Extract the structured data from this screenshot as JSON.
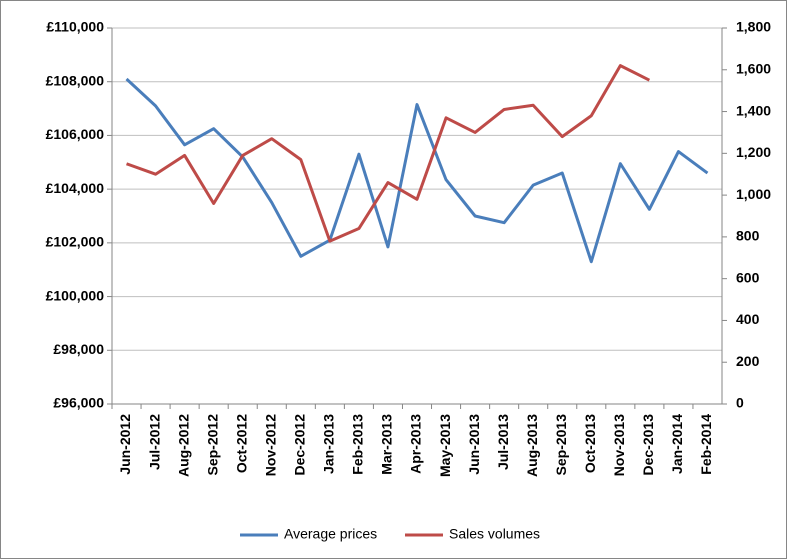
{
  "chart_data": {
    "type": "line",
    "categories": [
      "Jun-2012",
      "Jul-2012",
      "Aug-2012",
      "Sep-2012",
      "Oct-2012",
      "Nov-2012",
      "Dec-2012",
      "Jan-2013",
      "Feb-2013",
      "Mar-2013",
      "Apr-2013",
      "May-2013",
      "Jun-2013",
      "Jul-2013",
      "Aug-2013",
      "Sep-2013",
      "Oct-2013",
      "Nov-2013",
      "Dec-2013",
      "Jan-2014",
      "Feb-2014"
    ],
    "series": [
      {
        "name": "Average prices",
        "color": "#4a7ebb",
        "values": [
          108100,
          107100,
          105650,
          106250,
          105200,
          103500,
          101500,
          102100,
          105300,
          101850,
          107150,
          104350,
          103000,
          102750,
          104150,
          104600,
          101300,
          104950,
          103250,
          105400,
          104600
        ]
      },
      {
        "name": "Sales volumes",
        "color": "#be4b48",
        "axis": "y2",
        "values": [
          1150,
          1100,
          1190,
          960,
          1190,
          1270,
          1170,
          780,
          840,
          1060,
          980,
          1370,
          1300,
          1410,
          1430,
          1280,
          1380,
          1620,
          1550,
          null,
          null
        ]
      }
    ],
    "ylim": [
      96000,
      110000
    ],
    "yticks": [
      {
        "value": 96000,
        "label": "£96,000"
      },
      {
        "value": 98000,
        "label": "£98,000"
      },
      {
        "value": 100000,
        "label": "£100,000"
      },
      {
        "value": 102000,
        "label": "£102,000"
      },
      {
        "value": 104000,
        "label": "£104,000"
      },
      {
        "value": 106000,
        "label": "£106,000"
      },
      {
        "value": 108000,
        "label": "£108,000"
      },
      {
        "value": 110000,
        "label": "£110,000"
      }
    ],
    "y2lim": [
      0,
      1800
    ],
    "y2ticks": [
      0,
      200,
      400,
      600,
      800,
      {
        "value": 1000,
        "label": "1,000"
      },
      {
        "value": 1200,
        "label": "1,200"
      },
      {
        "value": 1400,
        "label": "1,400"
      },
      {
        "value": 1600,
        "label": "1,600"
      },
      {
        "value": 1800,
        "label": "1,800"
      }
    ],
    "grid": true,
    "legend": "bottom"
  }
}
